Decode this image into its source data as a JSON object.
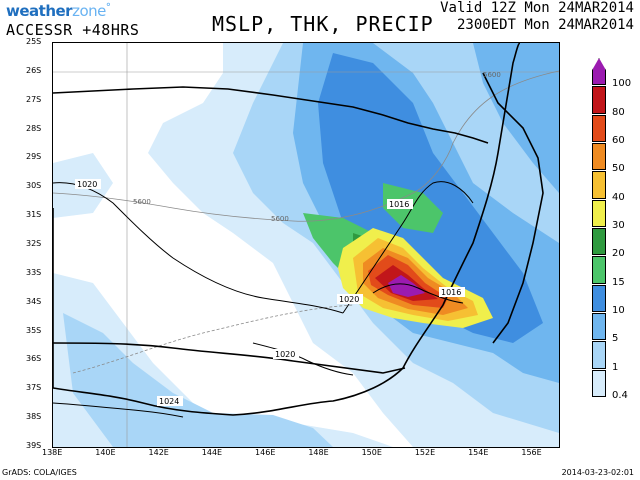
{
  "header": {
    "brand_weather": "weather",
    "brand_zone": "zone",
    "model_run": "ACCESSR +48HRS",
    "title": "MSLP, THK, PRECIP",
    "valid_line1": "Valid 12Z Mon 24MAR2014",
    "valid_line2": "2300EDT Mon 24MAR2014"
  },
  "footer": {
    "credit": "GrADS: COLA/IGES",
    "timestamp": "2014-03-23-02:01"
  },
  "axes": {
    "lat_labels": [
      "25S",
      "26S",
      "27S",
      "28S",
      "29S",
      "30S",
      "31S",
      "32S",
      "33S",
      "34S",
      "35S",
      "36S",
      "37S",
      "38S",
      "39S"
    ],
    "lon_labels": [
      "138E",
      "140E",
      "142E",
      "144E",
      "146E",
      "148E",
      "150E",
      "152E",
      "154E",
      "156E"
    ]
  },
  "legend": {
    "levels": [
      "0.4",
      "1",
      "5",
      "10",
      "15",
      "20",
      "30",
      "40",
      "50",
      "60",
      "80",
      "100"
    ],
    "colors": [
      "#d7ecfb",
      "#a9d6f7",
      "#6fb6ef",
      "#3f8ee0",
      "#4cc56a",
      "#2f9a3f",
      "#f0ef4c",
      "#f6c033",
      "#ef8b22",
      "#e24b1a",
      "#c1161a",
      "#9b1bb0"
    ]
  },
  "map_labels": {
    "isobars": [
      "1020",
      "1016",
      "1020",
      "1016",
      "1020",
      "1024"
    ],
    "thickness": [
      "5600",
      "5600",
      "5600"
    ]
  }
}
